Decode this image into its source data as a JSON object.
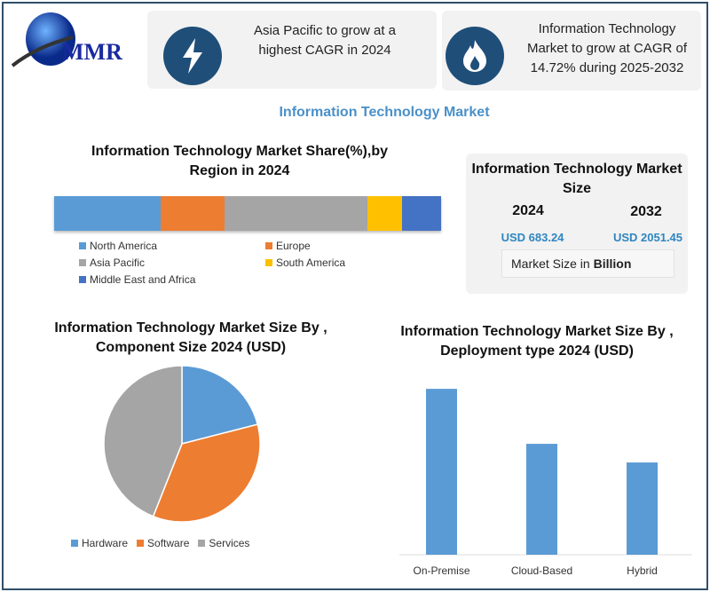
{
  "logo": {
    "text": "MMR"
  },
  "cards": [
    {
      "icon": "lightning-icon",
      "text": "Asia Pacific to grow at a highest CAGR in 2024"
    },
    {
      "icon": "flame-icon",
      "text": "Information Technology Market to grow at CAGR of 14.72% during 2025-2032"
    }
  ],
  "main_title": "Information Technology Market",
  "colors": {
    "accent": "#1f4e79",
    "title_blue": "#4a90c8",
    "value_blue": "#2e86c1"
  },
  "market_size": {
    "title": "Information Technology Market Size",
    "years": [
      "2024",
      "2032"
    ],
    "values": [
      "USD 683.24",
      "USD 2051.45"
    ],
    "unit_prefix": "Market Size in ",
    "unit_bold": "Billion"
  },
  "chart_data": [
    {
      "type": "bar",
      "stacked": true,
      "orientation": "horizontal",
      "title": "Information Technology Market  Share(%),by Region in 2024",
      "categories": [
        "North America",
        "Europe",
        "Asia Pacific",
        "South America",
        "Middle East and Africa"
      ],
      "values": [
        27.5,
        16.5,
        37,
        9,
        10
      ],
      "colors": [
        "#5b9bd5",
        "#ed7d31",
        "#a5a5a5",
        "#ffc000",
        "#4472c4"
      ],
      "legend": "bottom"
    },
    {
      "type": "pie",
      "title": "Information Technology Market Size By , Component Size  2024  (USD)",
      "categories": [
        "Hardware",
        "Software",
        "Services"
      ],
      "values": [
        21,
        35,
        44
      ],
      "colors": [
        "#5b9bd5",
        "#ed7d31",
        "#a5a5a5"
      ],
      "legend": "bottom"
    },
    {
      "type": "bar",
      "title": "Information Technology Market  Size By , Deployment type 2024  (USD)",
      "categories": [
        "On-Premise",
        "Cloud-Based",
        "Hybrid"
      ],
      "values": [
        178,
        119,
        99
      ],
      "color": "#5b9bd5",
      "grid": false
    }
  ]
}
